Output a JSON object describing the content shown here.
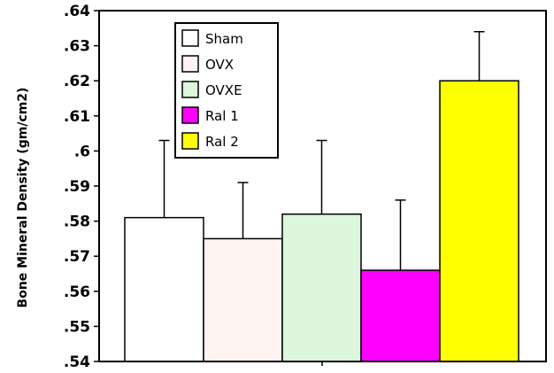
{
  "chart_data": {
    "type": "bar",
    "title": "",
    "xlabel": "",
    "ylabel": "Bone Mineral Density (gm/cm2)",
    "ylim": [
      0.54,
      0.64
    ],
    "yticks": [
      ".54",
      ".55",
      ".56",
      ".57",
      ".58",
      ".59",
      ".6",
      ".61",
      ".62",
      ".63",
      ".64"
    ],
    "legend_position": "top-left",
    "grid": false,
    "series": [
      {
        "name": "Sham",
        "value": 0.581,
        "error": 0.022,
        "color": "#ffffff"
      },
      {
        "name": "OVX",
        "value": 0.575,
        "error": 0.016,
        "color": "#fff3f1"
      },
      {
        "name": "OVXE",
        "value": 0.582,
        "error": 0.021,
        "color": "#dcf7dc"
      },
      {
        "name": "Ral 1",
        "value": 0.566,
        "error": 0.02,
        "color": "#ff00ff"
      },
      {
        "name": "Ral 2",
        "value": 0.62,
        "error": 0.014,
        "color": "#ffff00"
      }
    ]
  }
}
